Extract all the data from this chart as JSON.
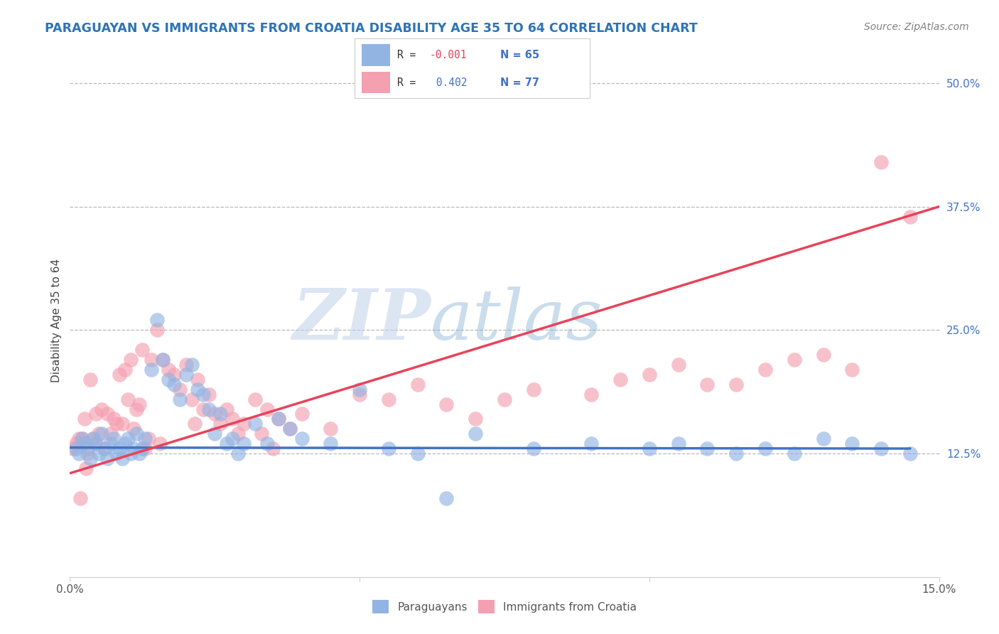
{
  "title": "PARAGUAYAN VS IMMIGRANTS FROM CROATIA DISABILITY AGE 35 TO 64 CORRELATION CHART",
  "source": "Source: ZipAtlas.com",
  "ylabel": "Disability Age 35 to 64",
  "xlim": [
    0.0,
    15.0
  ],
  "ylim": [
    0.0,
    52.0
  ],
  "yticks": [
    0.0,
    12.5,
    25.0,
    37.5,
    50.0
  ],
  "yticklabels": [
    "",
    "12.5%",
    "25.0%",
    "37.5%",
    "50.0%"
  ],
  "legend_labels": [
    "Paraguayans",
    "Immigrants from Croatia"
  ],
  "r_blue": -0.001,
  "n_blue": 65,
  "r_pink": 0.402,
  "n_pink": 77,
  "blue_color": "#92b4e3",
  "pink_color": "#f4a0b0",
  "blue_line_color": "#4472c4",
  "pink_line_color": "#e8435a",
  "title_color": "#2e74b5",
  "source_color": "#808080",
  "watermark_zip": "ZIP",
  "watermark_atlas": "atlas",
  "watermark_color_zip": "#c5d8f0",
  "watermark_color_atlas": "#a8c4e8",
  "blue_scatter_x": [
    0.1,
    0.15,
    0.2,
    0.25,
    0.3,
    0.35,
    0.4,
    0.45,
    0.5,
    0.55,
    0.6,
    0.65,
    0.7,
    0.75,
    0.8,
    0.85,
    0.9,
    0.95,
    1.0,
    1.05,
    1.1,
    1.15,
    1.2,
    1.25,
    1.3,
    1.4,
    1.5,
    1.6,
    1.7,
    1.8,
    1.9,
    2.0,
    2.1,
    2.2,
    2.3,
    2.4,
    2.5,
    2.6,
    2.7,
    2.8,
    2.9,
    3.0,
    3.2,
    3.4,
    3.6,
    3.8,
    4.0,
    4.5,
    5.0,
    5.5,
    6.0,
    6.5,
    7.0,
    8.0,
    9.0,
    10.0,
    11.5,
    12.0,
    13.0,
    13.5,
    14.0,
    14.5,
    10.5,
    11.0,
    12.5
  ],
  "blue_scatter_y": [
    13.0,
    12.5,
    14.0,
    13.5,
    13.0,
    12.0,
    14.0,
    13.5,
    12.5,
    14.5,
    13.0,
    12.0,
    13.5,
    14.0,
    12.5,
    13.0,
    12.0,
    13.5,
    14.0,
    12.5,
    13.0,
    14.5,
    12.5,
    13.0,
    14.0,
    21.0,
    26.0,
    22.0,
    20.0,
    19.5,
    18.0,
    20.5,
    21.5,
    19.0,
    18.5,
    17.0,
    14.5,
    16.5,
    13.5,
    14.0,
    12.5,
    13.5,
    15.5,
    13.5,
    16.0,
    15.0,
    14.0,
    13.5,
    19.0,
    13.0,
    12.5,
    8.0,
    14.5,
    13.0,
    13.5,
    13.0,
    12.5,
    13.0,
    14.0,
    13.5,
    13.0,
    12.5,
    13.5,
    13.0,
    12.5
  ],
  "pink_scatter_x": [
    0.05,
    0.1,
    0.15,
    0.2,
    0.25,
    0.3,
    0.35,
    0.4,
    0.45,
    0.5,
    0.55,
    0.6,
    0.65,
    0.7,
    0.75,
    0.8,
    0.85,
    0.9,
    0.95,
    1.0,
    1.05,
    1.1,
    1.15,
    1.2,
    1.25,
    1.3,
    1.4,
    1.5,
    1.6,
    1.7,
    1.8,
    1.9,
    2.0,
    2.1,
    2.2,
    2.3,
    2.4,
    2.5,
    2.6,
    2.7,
    2.8,
    2.9,
    3.0,
    3.2,
    3.4,
    3.6,
    3.8,
    4.0,
    4.5,
    5.0,
    5.5,
    6.0,
    6.5,
    7.0,
    7.5,
    8.0,
    9.0,
    10.0,
    11.0,
    12.0,
    13.0,
    14.0,
    9.5,
    10.5,
    11.5,
    12.5,
    13.5,
    14.5,
    1.35,
    0.42,
    1.55,
    2.15,
    3.3,
    3.5,
    0.22,
    0.18,
    0.28
  ],
  "pink_scatter_y": [
    13.0,
    13.5,
    14.0,
    13.5,
    16.0,
    12.5,
    20.0,
    14.0,
    16.5,
    14.5,
    17.0,
    13.0,
    16.5,
    14.5,
    16.0,
    15.5,
    20.5,
    15.5,
    21.0,
    18.0,
    22.0,
    15.0,
    17.0,
    17.5,
    23.0,
    13.0,
    22.0,
    25.0,
    22.0,
    21.0,
    20.5,
    19.0,
    21.5,
    18.0,
    20.0,
    17.0,
    18.5,
    16.5,
    15.5,
    17.0,
    16.0,
    14.5,
    15.5,
    18.0,
    17.0,
    16.0,
    15.0,
    16.5,
    15.0,
    18.5,
    18.0,
    19.5,
    17.5,
    16.0,
    18.0,
    19.0,
    18.5,
    20.5,
    19.5,
    21.0,
    22.5,
    42.0,
    20.0,
    21.5,
    19.5,
    22.0,
    21.0,
    36.5,
    14.0,
    13.5,
    13.5,
    15.5,
    14.5,
    13.0,
    14.0,
    8.0,
    11.0
  ],
  "blue_line_x": [
    0.0,
    14.5
  ],
  "blue_line_y": [
    13.1,
    13.0
  ],
  "pink_line_x": [
    0.0,
    15.0
  ],
  "pink_line_y": [
    10.5,
    37.5
  ]
}
